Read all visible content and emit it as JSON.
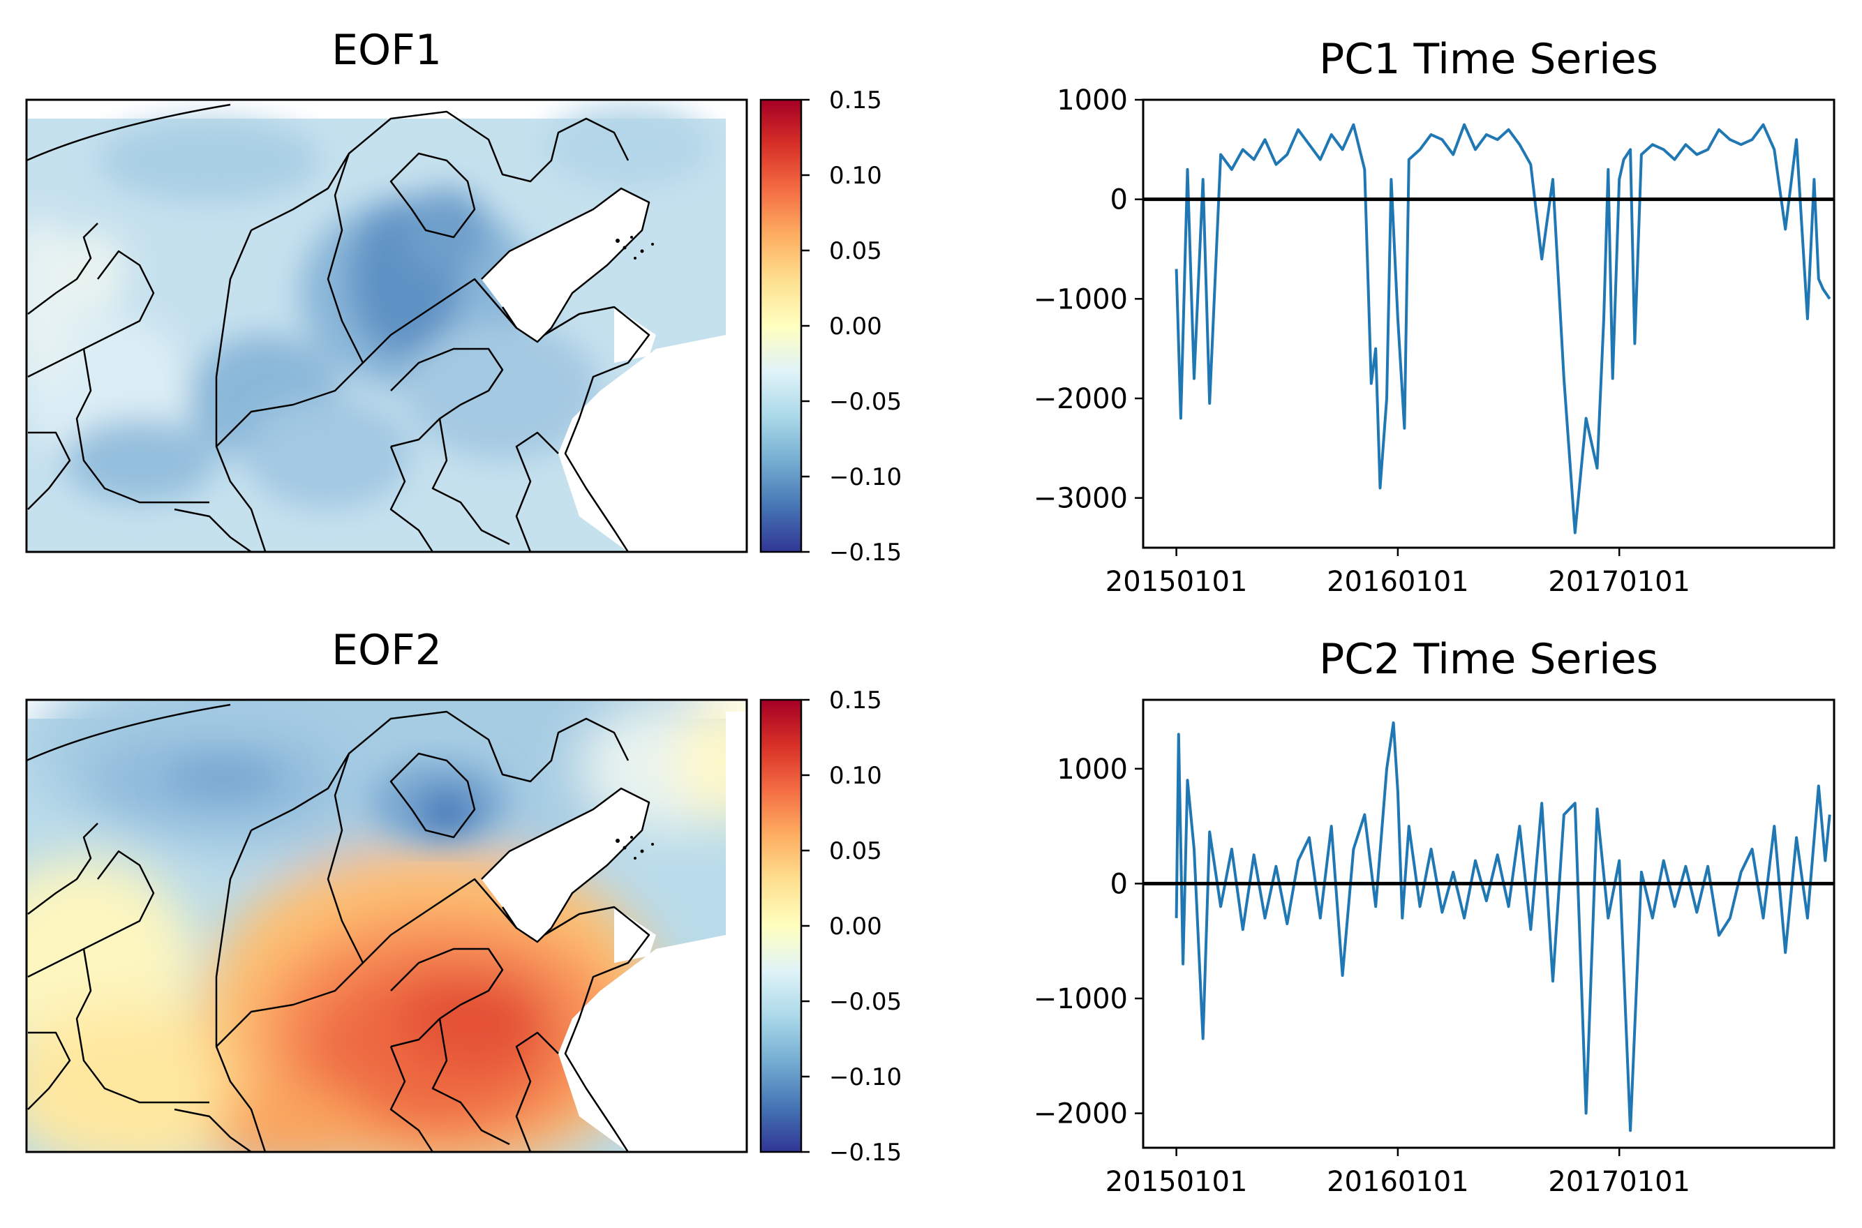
{
  "chart_data": [
    {
      "type": "heatmap",
      "panel": "map",
      "title": "EOF1",
      "colorbar": {
        "ticks": [
          "0.15",
          "0.10",
          "0.05",
          "0.00",
          "−0.05",
          "−0.10",
          "−0.15"
        ],
        "range": [
          -0.15,
          0.15
        ],
        "colormap": "RdYlBu_r"
      },
      "pattern": "uniform negative loadings over the whole domain, strongest (about -0.12) over the Beijing-Tianjin-Hebei region"
    },
    {
      "type": "line",
      "title": "PC1 Time Series",
      "xticks": [
        "20150101",
        "20160101",
        "20170101"
      ],
      "yticks": [
        "1000",
        "0",
        "−1000",
        "−2000",
        "−3000"
      ],
      "ylim": [
        -3500,
        1000
      ],
      "xlim": [
        -0.15,
        2.97
      ],
      "reference_line": 0,
      "series": [
        {
          "name": "PC1",
          "color": "#1f77b4",
          "x": [
            0.0,
            0.02,
            0.05,
            0.08,
            0.12,
            0.15,
            0.2,
            0.25,
            0.3,
            0.35,
            0.4,
            0.45,
            0.5,
            0.55,
            0.6,
            0.65,
            0.7,
            0.75,
            0.8,
            0.85,
            0.88,
            0.9,
            0.92,
            0.95,
            0.97,
            1.0,
            1.03,
            1.05,
            1.1,
            1.15,
            1.2,
            1.25,
            1.3,
            1.35,
            1.4,
            1.45,
            1.5,
            1.55,
            1.6,
            1.65,
            1.7,
            1.75,
            1.8,
            1.85,
            1.9,
            1.93,
            1.95,
            1.97,
            2.0,
            2.02,
            2.05,
            2.07,
            2.1,
            2.15,
            2.2,
            2.25,
            2.3,
            2.35,
            2.4,
            2.45,
            2.5,
            2.55,
            2.6,
            2.65,
            2.7,
            2.75,
            2.8,
            2.85,
            2.88,
            2.9,
            2.92,
            2.95
          ],
          "values": [
            -700,
            -2200,
            300,
            -1800,
            200,
            -2050,
            450,
            300,
            500,
            400,
            600,
            350,
            450,
            700,
            550,
            400,
            650,
            500,
            750,
            300,
            -1850,
            -1500,
            -2900,
            -2000,
            200,
            -1200,
            -2300,
            400,
            500,
            650,
            600,
            450,
            750,
            500,
            650,
            600,
            700,
            550,
            350,
            -600,
            200,
            -1800,
            -3350,
            -2200,
            -2700,
            -1200,
            300,
            -1800,
            200,
            400,
            500,
            -1450,
            450,
            550,
            500,
            400,
            550,
            450,
            500,
            700,
            600,
            550,
            600,
            750,
            500,
            -300,
            600,
            -1200,
            200,
            -800,
            -900,
            -1000
          ]
        }
      ]
    },
    {
      "type": "heatmap",
      "panel": "map",
      "title": "EOF2",
      "colorbar": {
        "ticks": [
          "0.15",
          "0.10",
          "0.05",
          "0.00",
          "−0.05",
          "−0.10",
          "−0.15"
        ],
        "range": [
          -0.15,
          0.15
        ],
        "colormap": "RdYlBu_r"
      },
      "pattern": "north-south dipole: negative loadings in the north (strongest about -0.12 around Beijing), positive loadings in the south (up to about 0.10 over Shandong / Henan)"
    },
    {
      "type": "line",
      "title": "PC2 Time Series",
      "xticks": [
        "20150101",
        "20160101",
        "20170101"
      ],
      "yticks": [
        "1000",
        "0",
        "−1000",
        "−2000"
      ],
      "ylim": [
        -2300,
        1600
      ],
      "xlim": [
        -0.15,
        2.97
      ],
      "reference_line": 0,
      "series": [
        {
          "name": "PC2",
          "color": "#1f77b4",
          "x": [
            0.0,
            0.01,
            0.03,
            0.05,
            0.08,
            0.12,
            0.15,
            0.2,
            0.25,
            0.3,
            0.35,
            0.4,
            0.45,
            0.5,
            0.55,
            0.6,
            0.65,
            0.7,
            0.75,
            0.8,
            0.85,
            0.9,
            0.95,
            0.98,
            1.0,
            1.02,
            1.05,
            1.1,
            1.15,
            1.2,
            1.25,
            1.3,
            1.35,
            1.4,
            1.45,
            1.5,
            1.55,
            1.6,
            1.65,
            1.7,
            1.75,
            1.8,
            1.85,
            1.9,
            1.95,
            2.0,
            2.05,
            2.1,
            2.15,
            2.2,
            2.25,
            2.3,
            2.35,
            2.4,
            2.45,
            2.5,
            2.55,
            2.6,
            2.65,
            2.7,
            2.75,
            2.8,
            2.85,
            2.9,
            2.93,
            2.95
          ],
          "values": [
            -300,
            1300,
            -700,
            900,
            300,
            -1350,
            450,
            -200,
            300,
            -400,
            250,
            -300,
            150,
            -350,
            200,
            400,
            -300,
            500,
            -800,
            300,
            600,
            -200,
            1000,
            1400,
            800,
            -300,
            500,
            -200,
            300,
            -250,
            100,
            -300,
            200,
            -150,
            250,
            -200,
            500,
            -400,
            700,
            -850,
            600,
            700,
            -2000,
            650,
            -300,
            200,
            -2150,
            100,
            -300,
            200,
            -200,
            150,
            -250,
            150,
            -450,
            -300,
            100,
            300,
            -300,
            500,
            -600,
            400,
            -300,
            850,
            200,
            600
          ]
        }
      ]
    }
  ]
}
